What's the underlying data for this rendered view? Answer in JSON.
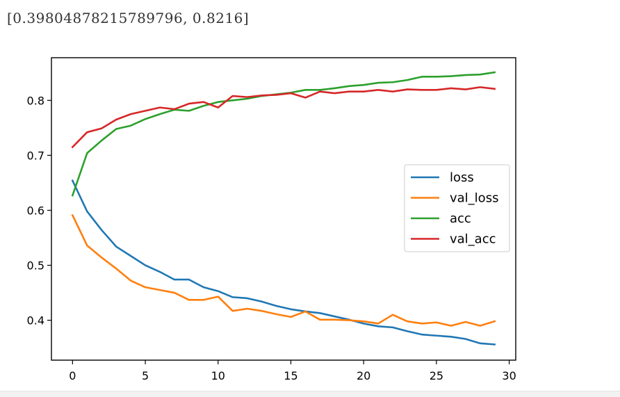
{
  "output": {
    "text": "[0.39804878215789796, 0.8216]"
  },
  "colors": {
    "loss": "#1f77b4",
    "val_loss": "#ff7f0e",
    "acc": "#2ca02c",
    "val_acc": "#d62728"
  },
  "chart_data": {
    "type": "line",
    "title": "",
    "xlabel": "",
    "ylabel": "",
    "xlim": [
      -1.45,
      30.45
    ],
    "ylim": [
      0.3274,
      0.8776
    ],
    "xticks": [
      0,
      5,
      10,
      15,
      20,
      25,
      30
    ],
    "yticks": [
      0.4,
      0.5,
      0.6,
      0.7,
      0.8
    ],
    "grid": false,
    "legend": "center-right",
    "x": [
      0,
      1,
      2,
      3,
      4,
      5,
      6,
      7,
      8,
      9,
      10,
      11,
      12,
      13,
      14,
      15,
      16,
      17,
      18,
      19,
      20,
      21,
      22,
      23,
      24,
      25,
      26,
      27,
      28,
      29
    ],
    "series": [
      {
        "name": "loss",
        "color": "#1f77b4",
        "values": [
          0.654,
          0.598,
          0.564,
          0.534,
          0.517,
          0.5,
          0.488,
          0.474,
          0.474,
          0.46,
          0.453,
          0.442,
          0.44,
          0.434,
          0.426,
          0.42,
          0.416,
          0.413,
          0.407,
          0.401,
          0.394,
          0.389,
          0.387,
          0.38,
          0.374,
          0.372,
          0.37,
          0.366,
          0.358,
          0.356
        ]
      },
      {
        "name": "val_loss",
        "color": "#ff7f0e",
        "values": [
          0.591,
          0.536,
          0.514,
          0.494,
          0.472,
          0.46,
          0.455,
          0.45,
          0.437,
          0.437,
          0.443,
          0.417,
          0.421,
          0.417,
          0.411,
          0.406,
          0.416,
          0.401,
          0.401,
          0.4,
          0.398,
          0.394,
          0.41,
          0.398,
          0.394,
          0.396,
          0.39,
          0.397,
          0.39,
          0.398
        ]
      },
      {
        "name": "acc",
        "color": "#2ca02c",
        "values": [
          0.627,
          0.704,
          0.727,
          0.748,
          0.754,
          0.766,
          0.775,
          0.783,
          0.781,
          0.79,
          0.797,
          0.8,
          0.803,
          0.808,
          0.811,
          0.814,
          0.819,
          0.819,
          0.822,
          0.826,
          0.828,
          0.832,
          0.833,
          0.837,
          0.843,
          0.843,
          0.844,
          0.846,
          0.847,
          0.851
        ]
      },
      {
        "name": "val_acc",
        "color": "#d62728",
        "values": [
          0.715,
          0.742,
          0.749,
          0.765,
          0.775,
          0.781,
          0.787,
          0.784,
          0.794,
          0.797,
          0.787,
          0.808,
          0.806,
          0.809,
          0.81,
          0.813,
          0.805,
          0.816,
          0.813,
          0.816,
          0.816,
          0.819,
          0.816,
          0.82,
          0.819,
          0.819,
          0.822,
          0.82,
          0.824,
          0.821
        ]
      }
    ]
  }
}
